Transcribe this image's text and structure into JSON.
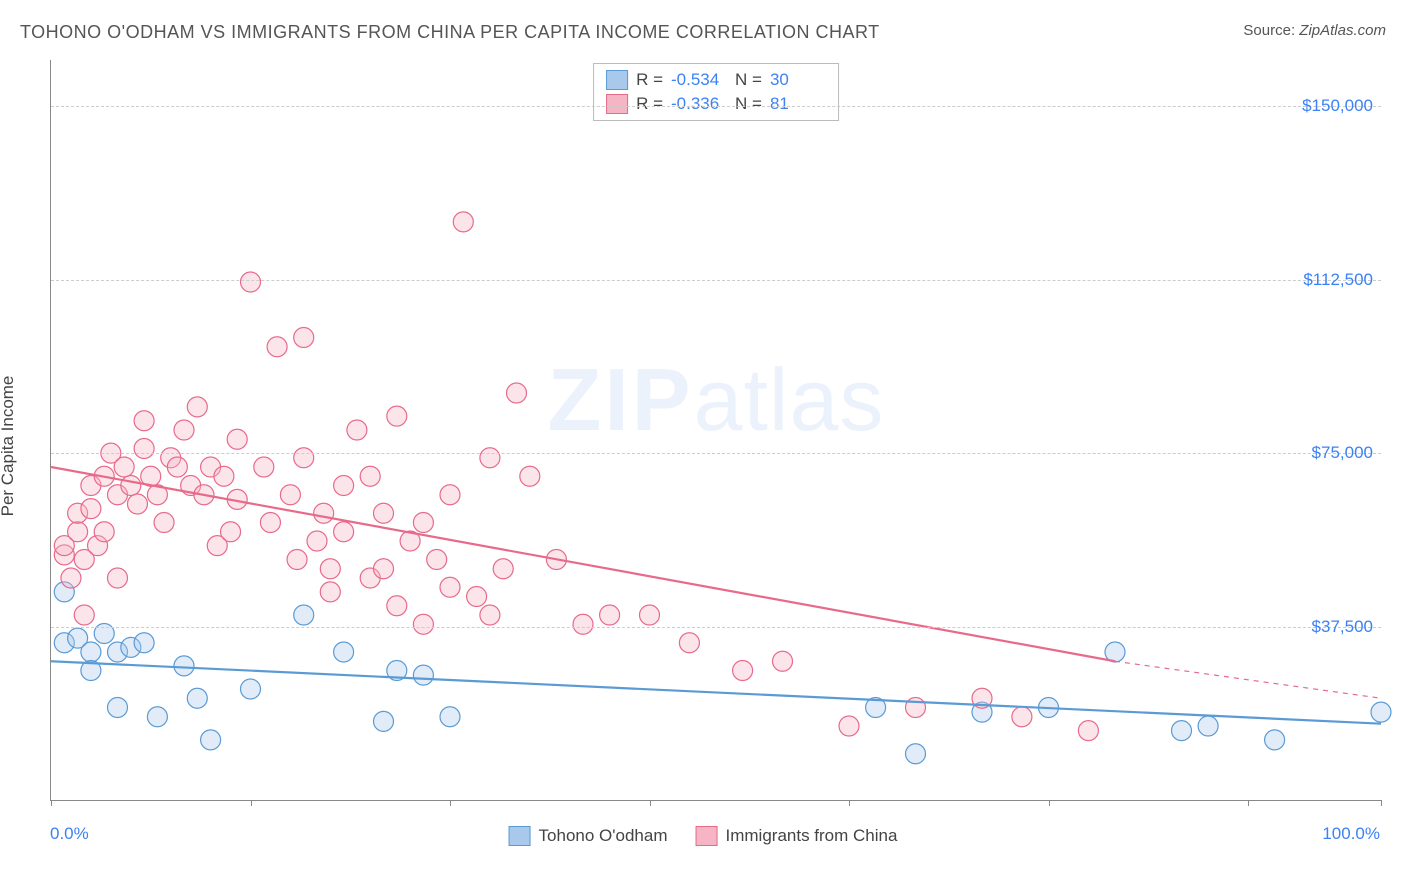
{
  "title": "TOHONO O'ODHAM VS IMMIGRANTS FROM CHINA PER CAPITA INCOME CORRELATION CHART",
  "source_prefix": "Source: ",
  "source_name": "ZipAtlas.com",
  "watermark_zip": "ZIP",
  "watermark_atlas": "atlas",
  "y_axis_label": "Per Capita Income",
  "chart": {
    "type": "scatter",
    "xlim": [
      0,
      100
    ],
    "ylim": [
      0,
      160000
    ],
    "x_tick_positions": [
      0,
      15,
      30,
      45,
      60,
      75,
      90,
      100
    ],
    "x_tick_labels": {
      "first": "0.0%",
      "last": "100.0%"
    },
    "y_ticks": [
      {
        "value": 37500,
        "label": "$37,500"
      },
      {
        "value": 75000,
        "label": "$75,000"
      },
      {
        "value": 112500,
        "label": "$112,500"
      },
      {
        "value": 150000,
        "label": "$150,000"
      }
    ],
    "background_color": "#ffffff",
    "grid_color": "#cccccc",
    "axis_color": "#888888",
    "tick_label_color": "#3b82f6",
    "marker_radius": 10,
    "marker_stroke_width": 1.2,
    "marker_fill_opacity": 0.35,
    "trend_stroke_width": 2.2,
    "series": [
      {
        "id": "tohono",
        "label": "Tohono O'odham",
        "color_stroke": "#5a9bd5",
        "color_fill": "#a9c9ec",
        "R": "-0.534",
        "N": "30",
        "trend": {
          "x1": 0,
          "y1": 30000,
          "x2": 100,
          "y2": 16500
        },
        "points": [
          [
            1,
            34000
          ],
          [
            1,
            45000
          ],
          [
            2,
            35000
          ],
          [
            3,
            32000
          ],
          [
            3,
            28000
          ],
          [
            4,
            36000
          ],
          [
            5,
            32000
          ],
          [
            5,
            20000
          ],
          [
            6,
            33000
          ],
          [
            7,
            34000
          ],
          [
            8,
            18000
          ],
          [
            10,
            29000
          ],
          [
            11,
            22000
          ],
          [
            12,
            13000
          ],
          [
            15,
            24000
          ],
          [
            19,
            40000
          ],
          [
            22,
            32000
          ],
          [
            25,
            17000
          ],
          [
            26,
            28000
          ],
          [
            28,
            27000
          ],
          [
            30,
            18000
          ],
          [
            62,
            20000
          ],
          [
            65,
            10000
          ],
          [
            70,
            19000
          ],
          [
            75,
            20000
          ],
          [
            80,
            32000
          ],
          [
            85,
            15000
          ],
          [
            87,
            16000
          ],
          [
            92,
            13000
          ],
          [
            100,
            19000
          ]
        ]
      },
      {
        "id": "china",
        "label": "Immigrants from China",
        "color_stroke": "#e86a8a",
        "color_fill": "#f6b5c4",
        "R": "-0.336",
        "N": "81",
        "trend": {
          "x1": 0,
          "y1": 72000,
          "x2": 80,
          "y2": 30000
        },
        "trend_dash_ext": {
          "x1": 80,
          "y1": 30000,
          "x2": 100,
          "y2": 22000
        },
        "points": [
          [
            1,
            53000
          ],
          [
            1,
            55000
          ],
          [
            1.5,
            48000
          ],
          [
            2,
            58000
          ],
          [
            2,
            62000
          ],
          [
            2.5,
            52000
          ],
          [
            2.5,
            40000
          ],
          [
            3,
            68000
          ],
          [
            3,
            63000
          ],
          [
            3.5,
            55000
          ],
          [
            4,
            70000
          ],
          [
            4,
            58000
          ],
          [
            4.5,
            75000
          ],
          [
            5,
            48000
          ],
          [
            5,
            66000
          ],
          [
            5.5,
            72000
          ],
          [
            6,
            68000
          ],
          [
            6.5,
            64000
          ],
          [
            7,
            82000
          ],
          [
            7,
            76000
          ],
          [
            7.5,
            70000
          ],
          [
            8,
            66000
          ],
          [
            8.5,
            60000
          ],
          [
            9,
            74000
          ],
          [
            9.5,
            72000
          ],
          [
            10,
            80000
          ],
          [
            10.5,
            68000
          ],
          [
            11,
            85000
          ],
          [
            11.5,
            66000
          ],
          [
            12,
            72000
          ],
          [
            12.5,
            55000
          ],
          [
            13,
            70000
          ],
          [
            13.5,
            58000
          ],
          [
            14,
            78000
          ],
          [
            14,
            65000
          ],
          [
            15,
            112000
          ],
          [
            16,
            72000
          ],
          [
            16.5,
            60000
          ],
          [
            17,
            98000
          ],
          [
            18,
            66000
          ],
          [
            18.5,
            52000
          ],
          [
            19,
            74000
          ],
          [
            19,
            100000
          ],
          [
            20,
            56000
          ],
          [
            20.5,
            62000
          ],
          [
            21,
            45000
          ],
          [
            21,
            50000
          ],
          [
            22,
            68000
          ],
          [
            22,
            58000
          ],
          [
            23,
            80000
          ],
          [
            24,
            70000
          ],
          [
            24,
            48000
          ],
          [
            25,
            62000
          ],
          [
            25,
            50000
          ],
          [
            26,
            83000
          ],
          [
            26,
            42000
          ],
          [
            27,
            56000
          ],
          [
            28,
            38000
          ],
          [
            28,
            60000
          ],
          [
            29,
            52000
          ],
          [
            30,
            46000
          ],
          [
            30,
            66000
          ],
          [
            31,
            125000
          ],
          [
            32,
            44000
          ],
          [
            33,
            40000
          ],
          [
            33,
            74000
          ],
          [
            34,
            50000
          ],
          [
            35,
            88000
          ],
          [
            36,
            70000
          ],
          [
            38,
            52000
          ],
          [
            40,
            38000
          ],
          [
            42,
            40000
          ],
          [
            45,
            40000
          ],
          [
            48,
            34000
          ],
          [
            52,
            28000
          ],
          [
            55,
            30000
          ],
          [
            60,
            16000
          ],
          [
            65,
            20000
          ],
          [
            70,
            22000
          ],
          [
            73,
            18000
          ],
          [
            78,
            15000
          ]
        ]
      }
    ]
  }
}
